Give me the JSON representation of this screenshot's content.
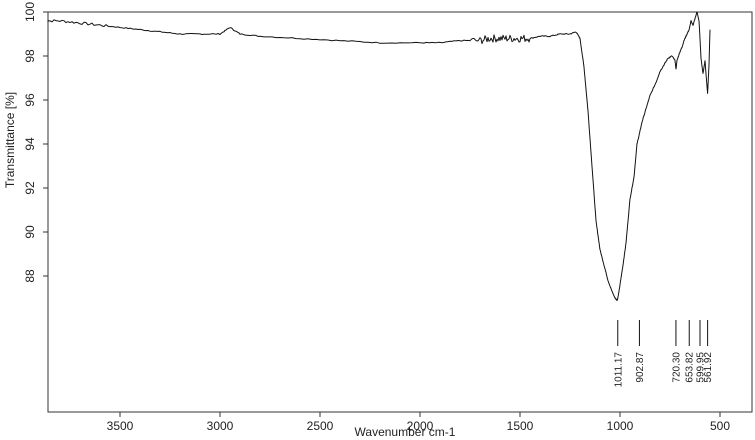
{
  "chart_data": {
    "type": "line",
    "title": "",
    "xlabel": "Wavenumber cm-1",
    "ylabel": "Transmittance [%]",
    "xlim": [
      3900,
      400
    ],
    "ylim": [
      84,
      100
    ],
    "x_ticks": [
      3500,
      3000,
      2500,
      2000,
      1500,
      1000,
      500
    ],
    "x_tick_labels": [
      "3500",
      "3000",
      "2500",
      "2000",
      "1500",
      "1000",
      "500"
    ],
    "y_ticks": [
      88,
      90,
      92,
      94,
      96,
      98,
      100
    ],
    "y_tick_labels": [
      "88",
      "90",
      "92",
      "94",
      "96",
      "98",
      "100"
    ],
    "grid": false,
    "series": [
      {
        "x": [
          3900,
          3800,
          3700,
          3600,
          3500,
          3400,
          3300,
          3200,
          3100,
          3000,
          2950,
          2900,
          2800,
          2600,
          2400,
          2200,
          2000,
          1900,
          1800,
          1700,
          1650,
          1600,
          1550,
          1500,
          1450,
          1400,
          1350,
          1300,
          1250,
          1220,
          1200,
          1180,
          1160,
          1140,
          1120,
          1100,
          1080,
          1060,
          1040,
          1025,
          1015,
          1011,
          1005,
          995,
          985,
          970,
          950,
          930,
          915,
          902,
          890,
          870,
          850,
          820,
          800,
          780,
          760,
          740,
          725,
          720,
          715,
          700,
          690,
          680,
          665,
          654,
          645,
          635,
          625,
          615,
          605,
          600,
          595,
          585,
          575,
          565,
          562,
          555,
          550
        ],
        "y": [
          99.6,
          99.6,
          99.5,
          99.4,
          99.3,
          99.2,
          99.1,
          99.0,
          99.0,
          99.0,
          99.3,
          99.0,
          98.9,
          98.8,
          98.7,
          98.6,
          98.6,
          98.6,
          98.7,
          98.7,
          98.8,
          98.8,
          98.8,
          98.8,
          98.8,
          98.9,
          98.9,
          99.0,
          99.0,
          99.1,
          98.8,
          97.5,
          95.5,
          93.0,
          90.5,
          89.2,
          88.5,
          87.8,
          87.3,
          87.0,
          86.9,
          87.0,
          87.3,
          87.9,
          88.5,
          89.5,
          91.5,
          92.5,
          94.0,
          94.5,
          95.0,
          95.6,
          96.2,
          96.8,
          97.3,
          97.6,
          97.9,
          98.0,
          97.8,
          97.4,
          97.8,
          98.2,
          98.4,
          98.7,
          99.0,
          99.2,
          99.6,
          99.4,
          99.7,
          100.0,
          99.6,
          98.8,
          97.9,
          97.2,
          97.8,
          96.6,
          96.3,
          97.6,
          99.2
        ]
      }
    ],
    "peak_labels": [
      {
        "x": 1011.17,
        "label": "1011.17"
      },
      {
        "x": 902.87,
        "label": "902.87"
      },
      {
        "x": 720.3,
        "label": "720.30"
      },
      {
        "x": 653.82,
        "label": "653.82"
      },
      {
        "x": 599.95,
        "label": "599.95"
      },
      {
        "x": 561.92,
        "label": "561.92"
      }
    ]
  }
}
